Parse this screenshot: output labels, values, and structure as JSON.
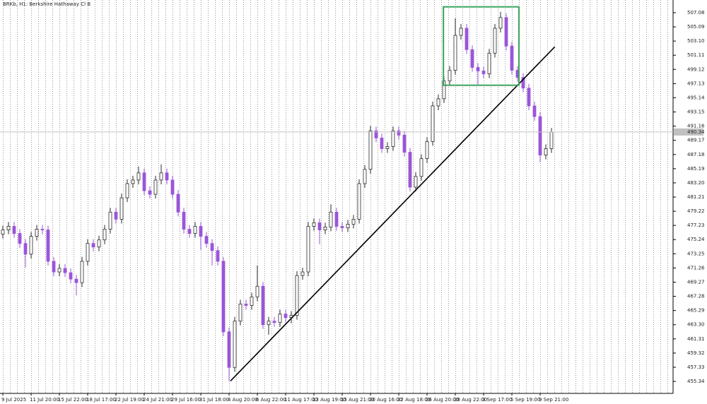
{
  "chart_data": {
    "type": "candlestick",
    "title": "BRKb, H1: Berkshire Hathaway Cl B",
    "categories": [
      "9 Jul 2025",
      null,
      null,
      null,
      null,
      "11 Jul 20:00",
      null,
      null,
      null,
      null,
      "15 Jul 22:00",
      null,
      null,
      null,
      null,
      "18 Jul 17:00",
      null,
      null,
      null,
      null,
      "22 Jul 19:00",
      null,
      null,
      null,
      null,
      "24 Jul 21:00",
      null,
      null,
      null,
      null,
      "29 Jul 16:00",
      null,
      null,
      null,
      null,
      "31 Jul 18:00",
      null,
      null,
      null,
      null,
      "4 Aug 20:00",
      null,
      null,
      null,
      null,
      "6 Aug 22:00",
      null,
      null,
      null,
      null,
      "11 Aug 17:00",
      null,
      null,
      null,
      null,
      "13 Aug 19:00",
      null,
      null,
      null,
      null,
      "15 Aug 21:00",
      null,
      null,
      null,
      null,
      "20 Aug 16:00",
      null,
      null,
      null,
      null,
      "22 Aug 18:00",
      null,
      null,
      null,
      null,
      "26 Aug 20:00",
      null,
      null,
      null,
      null,
      "28 Aug 22:00",
      null,
      null,
      null,
      null,
      "3 Sep 17:00",
      null,
      null,
      null,
      null,
      "5 Sep 19:00",
      null,
      null,
      null,
      null,
      "9 Sep 21:00",
      null,
      null
    ],
    "open": [
      476.0,
      476.6,
      477.1,
      476.1,
      474.7,
      473.2,
      475.7,
      476.7,
      476.6,
      472.2,
      470.7,
      471.2,
      470.6,
      469.7,
      469.2,
      472.2,
      474.7,
      474.2,
      475.2,
      476.7,
      479.1,
      478.1,
      481.1,
      483.1,
      483.6,
      484.6,
      482.1,
      481.6,
      483.6,
      484.6,
      483.6,
      481.6,
      479.1,
      476.7,
      476.1,
      477.1,
      475.7,
      474.7,
      473.7,
      472.2,
      462.3,
      457.3,
      463.8,
      466.2,
      466.0,
      467.2,
      468.7,
      463.3,
      463.8,
      463.6,
      464.8,
      464.3,
      464.6,
      470.2,
      470.7,
      477.1,
      477.6,
      476.6,
      477.0,
      479.1,
      477.1,
      476.9,
      477.4,
      478.1,
      483.1,
      485.1,
      490.5,
      489.5,
      488.0,
      488.3,
      490.5,
      489.9,
      487.5,
      482.6,
      484.1,
      486.6,
      489.0,
      494.0,
      495.0,
      497.5,
      499.0,
      503.9,
      504.9,
      501.9,
      499.4,
      498.9,
      498.5,
      501.4,
      504.9,
      506.4,
      502.4,
      499.0,
      498.0,
      496.5,
      494.0,
      492.5,
      487.1,
      488.0
    ],
    "high": [
      477.2,
      477.7,
      477.7,
      476.7,
      475.3,
      476.3,
      477.3,
      477.3,
      477.2,
      472.8,
      471.8,
      471.8,
      471.2,
      470.3,
      472.8,
      475.3,
      475.3,
      475.8,
      477.3,
      479.7,
      479.7,
      481.7,
      483.7,
      484.2,
      485.5,
      485.2,
      482.7,
      484.2,
      485.8,
      485.2,
      484.2,
      482.2,
      479.7,
      477.3,
      477.7,
      477.7,
      476.3,
      475.3,
      474.3,
      472.8,
      462.9,
      464.4,
      466.8,
      466.8,
      467.8,
      471.6,
      469.3,
      464.4,
      464.4,
      465.4,
      465.4,
      465.2,
      470.8,
      471.3,
      477.7,
      478.2,
      478.2,
      477.6,
      480.2,
      479.7,
      477.7,
      478.0,
      478.7,
      483.7,
      485.7,
      491.2,
      491.1,
      490.1,
      488.9,
      491.1,
      491.1,
      490.5,
      488.1,
      484.7,
      487.2,
      489.6,
      494.6,
      495.6,
      498.1,
      499.6,
      506.3,
      505.5,
      505.5,
      502.5,
      500.0,
      499.5,
      502.0,
      505.5,
      507.2,
      507.0,
      503.0,
      499.6,
      498.6,
      497.1,
      494.6,
      493.1,
      488.6,
      490.9
    ],
    "low": [
      475.4,
      476.0,
      475.5,
      474.1,
      471.3,
      472.6,
      475.1,
      476.0,
      471.6,
      470.1,
      470.1,
      470.0,
      469.1,
      467.4,
      468.6,
      471.6,
      473.6,
      473.6,
      474.6,
      476.1,
      477.5,
      477.5,
      480.5,
      482.5,
      483.0,
      481.5,
      481.0,
      481.0,
      483.0,
      483.0,
      481.0,
      478.5,
      476.1,
      475.5,
      475.5,
      473.8,
      474.1,
      471.6,
      471.6,
      461.7,
      455.4,
      456.7,
      463.2,
      465.4,
      465.4,
      466.6,
      462.7,
      461.9,
      463.0,
      463.0,
      463.7,
      463.5,
      464.0,
      469.6,
      470.1,
      476.5,
      474.6,
      476.0,
      476.4,
      476.5,
      476.3,
      476.3,
      476.8,
      477.5,
      482.5,
      484.5,
      488.9,
      487.4,
      487.4,
      487.7,
      489.3,
      486.9,
      482.0,
      482.0,
      483.5,
      486.0,
      488.4,
      493.4,
      494.4,
      496.9,
      498.4,
      503.3,
      501.3,
      498.8,
      497.0,
      497.9,
      497.9,
      500.8,
      504.3,
      501.8,
      498.4,
      497.4,
      495.9,
      493.4,
      491.9,
      486.1,
      486.5,
      487.4
    ],
    "close": [
      476.6,
      477.1,
      476.1,
      474.7,
      473.2,
      475.7,
      476.7,
      476.6,
      472.2,
      470.7,
      471.2,
      470.6,
      469.7,
      469.2,
      472.2,
      474.7,
      474.2,
      475.2,
      476.7,
      479.1,
      478.1,
      481.1,
      483.1,
      483.6,
      484.6,
      482.1,
      481.6,
      483.6,
      484.6,
      483.6,
      481.6,
      479.1,
      476.7,
      476.1,
      477.1,
      475.7,
      474.7,
      473.7,
      472.2,
      462.3,
      457.3,
      463.8,
      466.2,
      466.0,
      467.2,
      468.7,
      463.3,
      463.8,
      463.6,
      464.8,
      464.3,
      464.6,
      470.2,
      470.7,
      477.1,
      477.6,
      476.6,
      477.0,
      479.1,
      477.1,
      476.9,
      477.4,
      478.1,
      483.1,
      485.1,
      490.5,
      489.5,
      488.0,
      488.3,
      490.5,
      489.9,
      487.5,
      482.6,
      484.1,
      486.6,
      489.0,
      494.0,
      495.0,
      497.5,
      499.0,
      503.9,
      504.9,
      501.9,
      499.4,
      498.9,
      498.5,
      501.4,
      504.9,
      506.4,
      502.4,
      499.0,
      498.0,
      496.5,
      494.0,
      492.5,
      487.1,
      488.0,
      490.34
    ],
    "up_color": "#2b2b2b",
    "down_color": "#9b55d8",
    "ylim": [
      453.66,
      508.86
    ],
    "yticks": [
      507.08,
      505.09,
      {
        "value": 503.1,
        "label": "503.10"
      },
      501.11,
      499.12,
      497.13,
      495.14,
      493.15,
      491.16,
      489.17,
      487.18,
      485.19,
      {
        "value": 483.2,
        "label": "483.20"
      },
      481.21,
      479.22,
      477.23,
      475.24,
      473.25,
      471.26,
      469.27,
      467.28,
      465.29,
      {
        "value": 463.3,
        "label": "463.30"
      },
      461.31,
      459.32,
      457.33,
      455.34
    ],
    "last_price": 490.34,
    "trendline": {
      "from": [
        40.25,
        455.4
      ],
      "to": [
        97.6,
        502.3
      ],
      "color": "#000000"
    },
    "box": {
      "from": [
        77.9,
        507.9
      ],
      "to": [
        91.25,
        496.9
      ],
      "color": "#3aa35c"
    },
    "grid": true
  }
}
